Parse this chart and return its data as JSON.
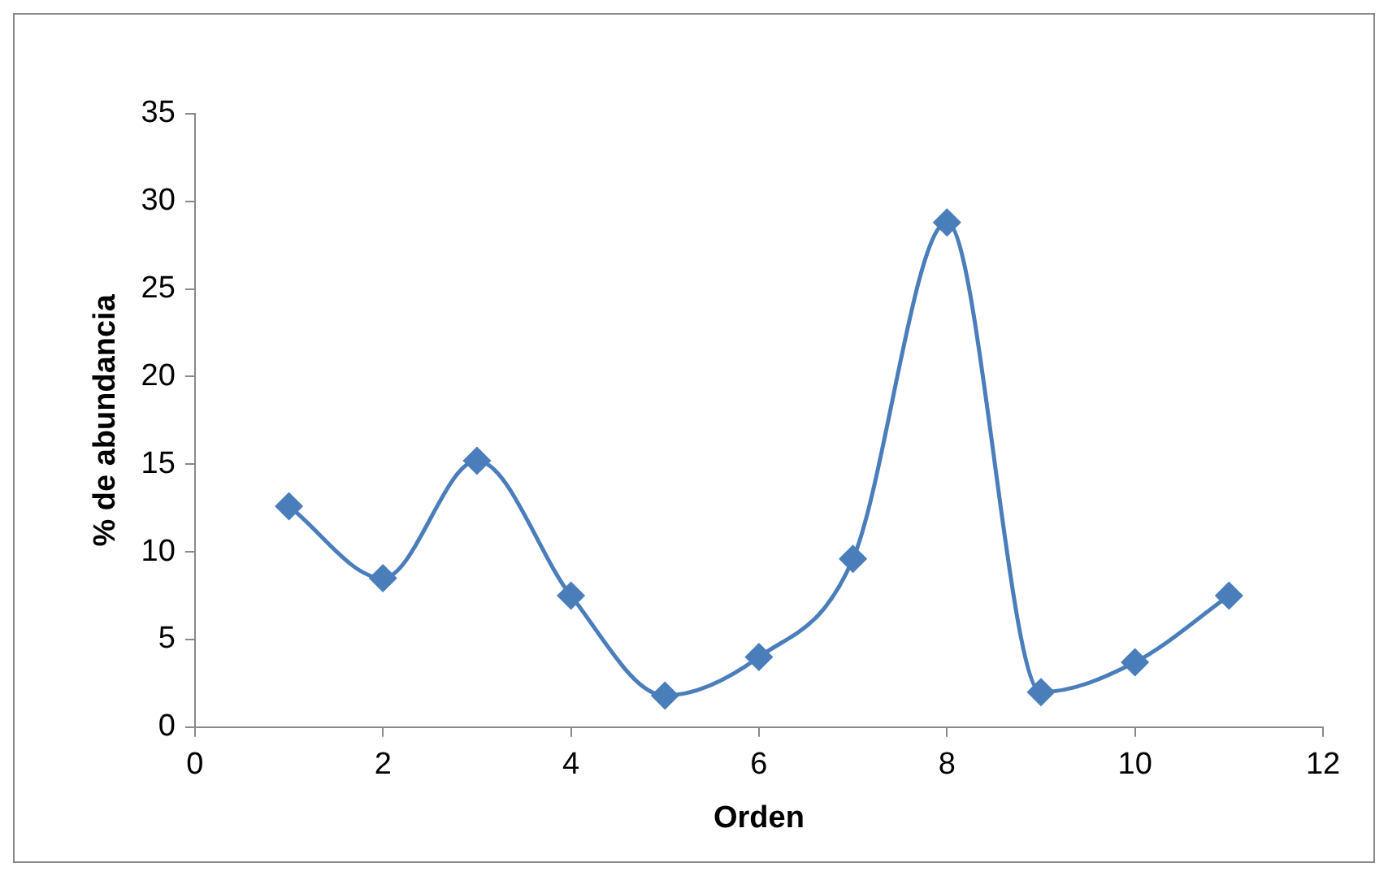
{
  "chart_data": {
    "type": "line",
    "xlabel": "Orden",
    "ylabel": "% de abundancia",
    "x": [
      1,
      2,
      3,
      4,
      5,
      6,
      7,
      8,
      9,
      10,
      11
    ],
    "series": [
      {
        "color": "#4a7ebb",
        "values": [
          12.6,
          8.5,
          15.2,
          7.5,
          1.8,
          4.0,
          9.6,
          28.8,
          2.0,
          3.7,
          7.5
        ]
      }
    ],
    "xlim": [
      0,
      12
    ],
    "xticks": [
      0,
      2,
      4,
      6,
      8,
      10,
      12
    ],
    "ylim": [
      0,
      35
    ],
    "yticks": [
      0,
      5,
      10,
      15,
      20,
      25,
      30,
      35
    ],
    "grid": false,
    "legend": false,
    "marker": "diamond",
    "line_style": "solid"
  }
}
